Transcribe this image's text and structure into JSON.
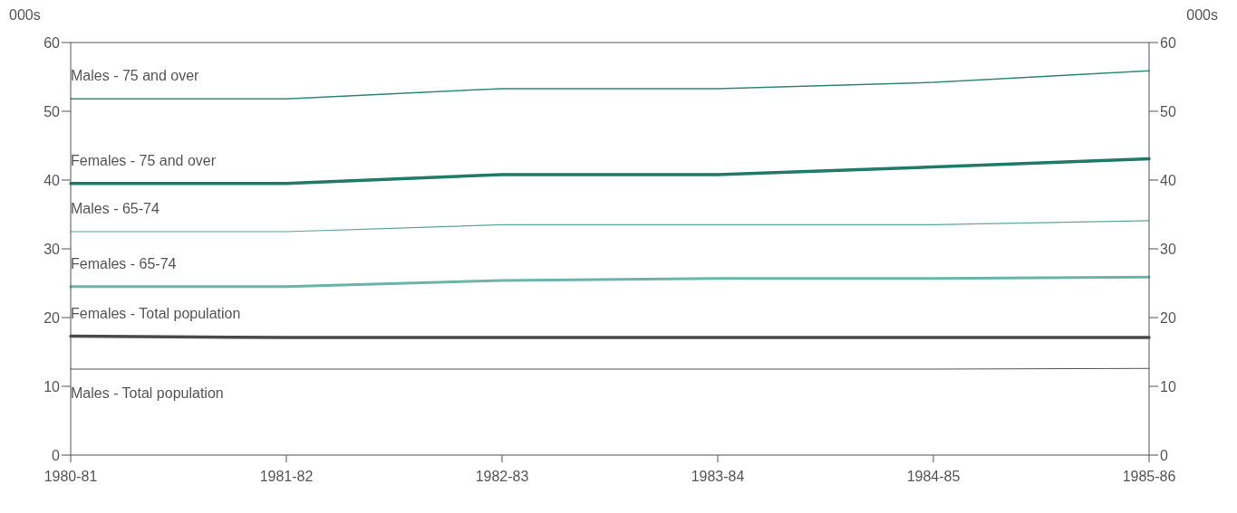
{
  "chart_data": {
    "type": "line",
    "ylabel": "000s",
    "y2label": "000s",
    "categories": [
      "1980-81",
      "1981-82",
      "1982-83",
      "1983-84",
      "1984-85",
      "1985-86"
    ],
    "series": [
      {
        "name": "Males - 75 and over",
        "color": "#2e8a78",
        "values": [
          51.8,
          51.8,
          53.3,
          53.3,
          54.2,
          55.9
        ]
      },
      {
        "name": "Females - 75 and over",
        "color": "#1f7a68",
        "values": [
          39.5,
          39.5,
          40.8,
          40.8,
          41.9,
          43.1
        ]
      },
      {
        "name": "Males - 65-74",
        "color": "#5aa898",
        "values": [
          32.5,
          32.5,
          33.5,
          33.5,
          33.5,
          34.1
        ]
      },
      {
        "name": "Females - 65-74",
        "color": "#6ab5aa",
        "values": [
          24.5,
          24.5,
          25.4,
          25.7,
          25.7,
          25.9
        ]
      },
      {
        "name": "Females - Total population",
        "color": "#4a4a4a",
        "values": [
          17.3,
          17.1,
          17.1,
          17.1,
          17.1,
          17.1
        ]
      },
      {
        "name": "Males - Total population",
        "color": "#555555",
        "values": [
          12.5,
          12.5,
          12.5,
          12.5,
          12.5,
          12.6
        ]
      }
    ],
    "ylim": [
      0,
      60
    ],
    "yticks": [
      0,
      10,
      20,
      30,
      40,
      50,
      60
    ],
    "y2lim": [
      0,
      60
    ],
    "y2ticks": [
      0,
      10,
      20,
      30,
      40,
      50,
      60
    ],
    "grid": false,
    "legend": false,
    "marker": "none",
    "line_style": "solid"
  }
}
